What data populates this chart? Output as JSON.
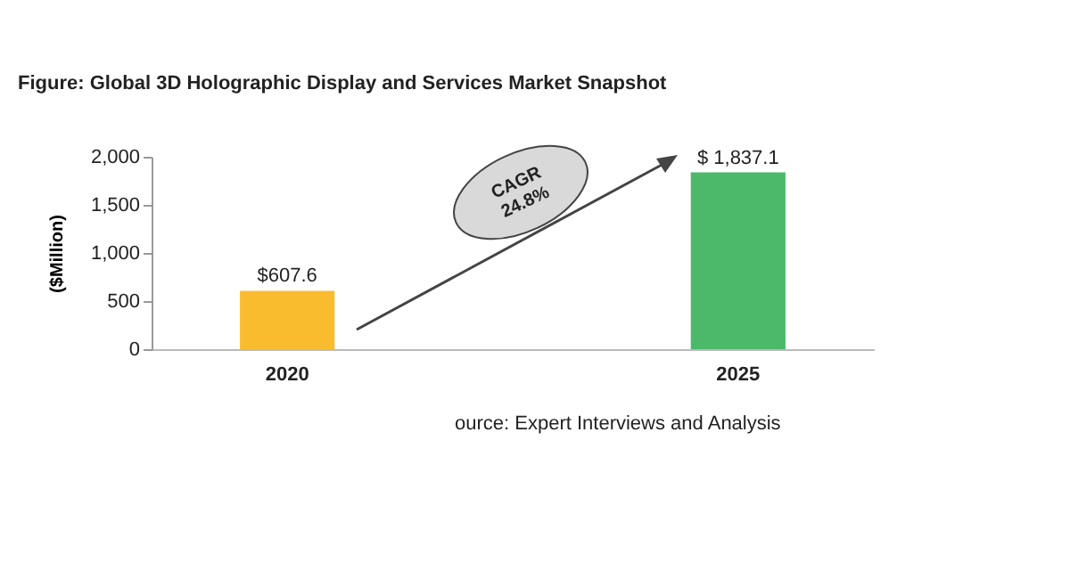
{
  "chart_data": {
    "type": "bar",
    "title": "Figure: Global 3D Holographic Display and Services Market Snapshot",
    "ylabel": "($Million)",
    "categories": [
      "2020",
      "2025"
    ],
    "values": [
      607.6,
      1837.1
    ],
    "colors": [
      "#f9bc2e",
      "#4cb86a"
    ],
    "value_labels": [
      "$607.6",
      "$ 1,837.1"
    ],
    "ylim": [
      0,
      2000
    ],
    "yticks": [
      0,
      500,
      {
        "value": 1000,
        "label": "1,000"
      },
      {
        "value": 1500,
        "label": "1,500"
      },
      {
        "value": 2000,
        "label": "2,000"
      }
    ],
    "grid": false,
    "annotations": [
      "CAGR\n24.8%",
      "ource: Expert Interviews and Analysis"
    ]
  }
}
